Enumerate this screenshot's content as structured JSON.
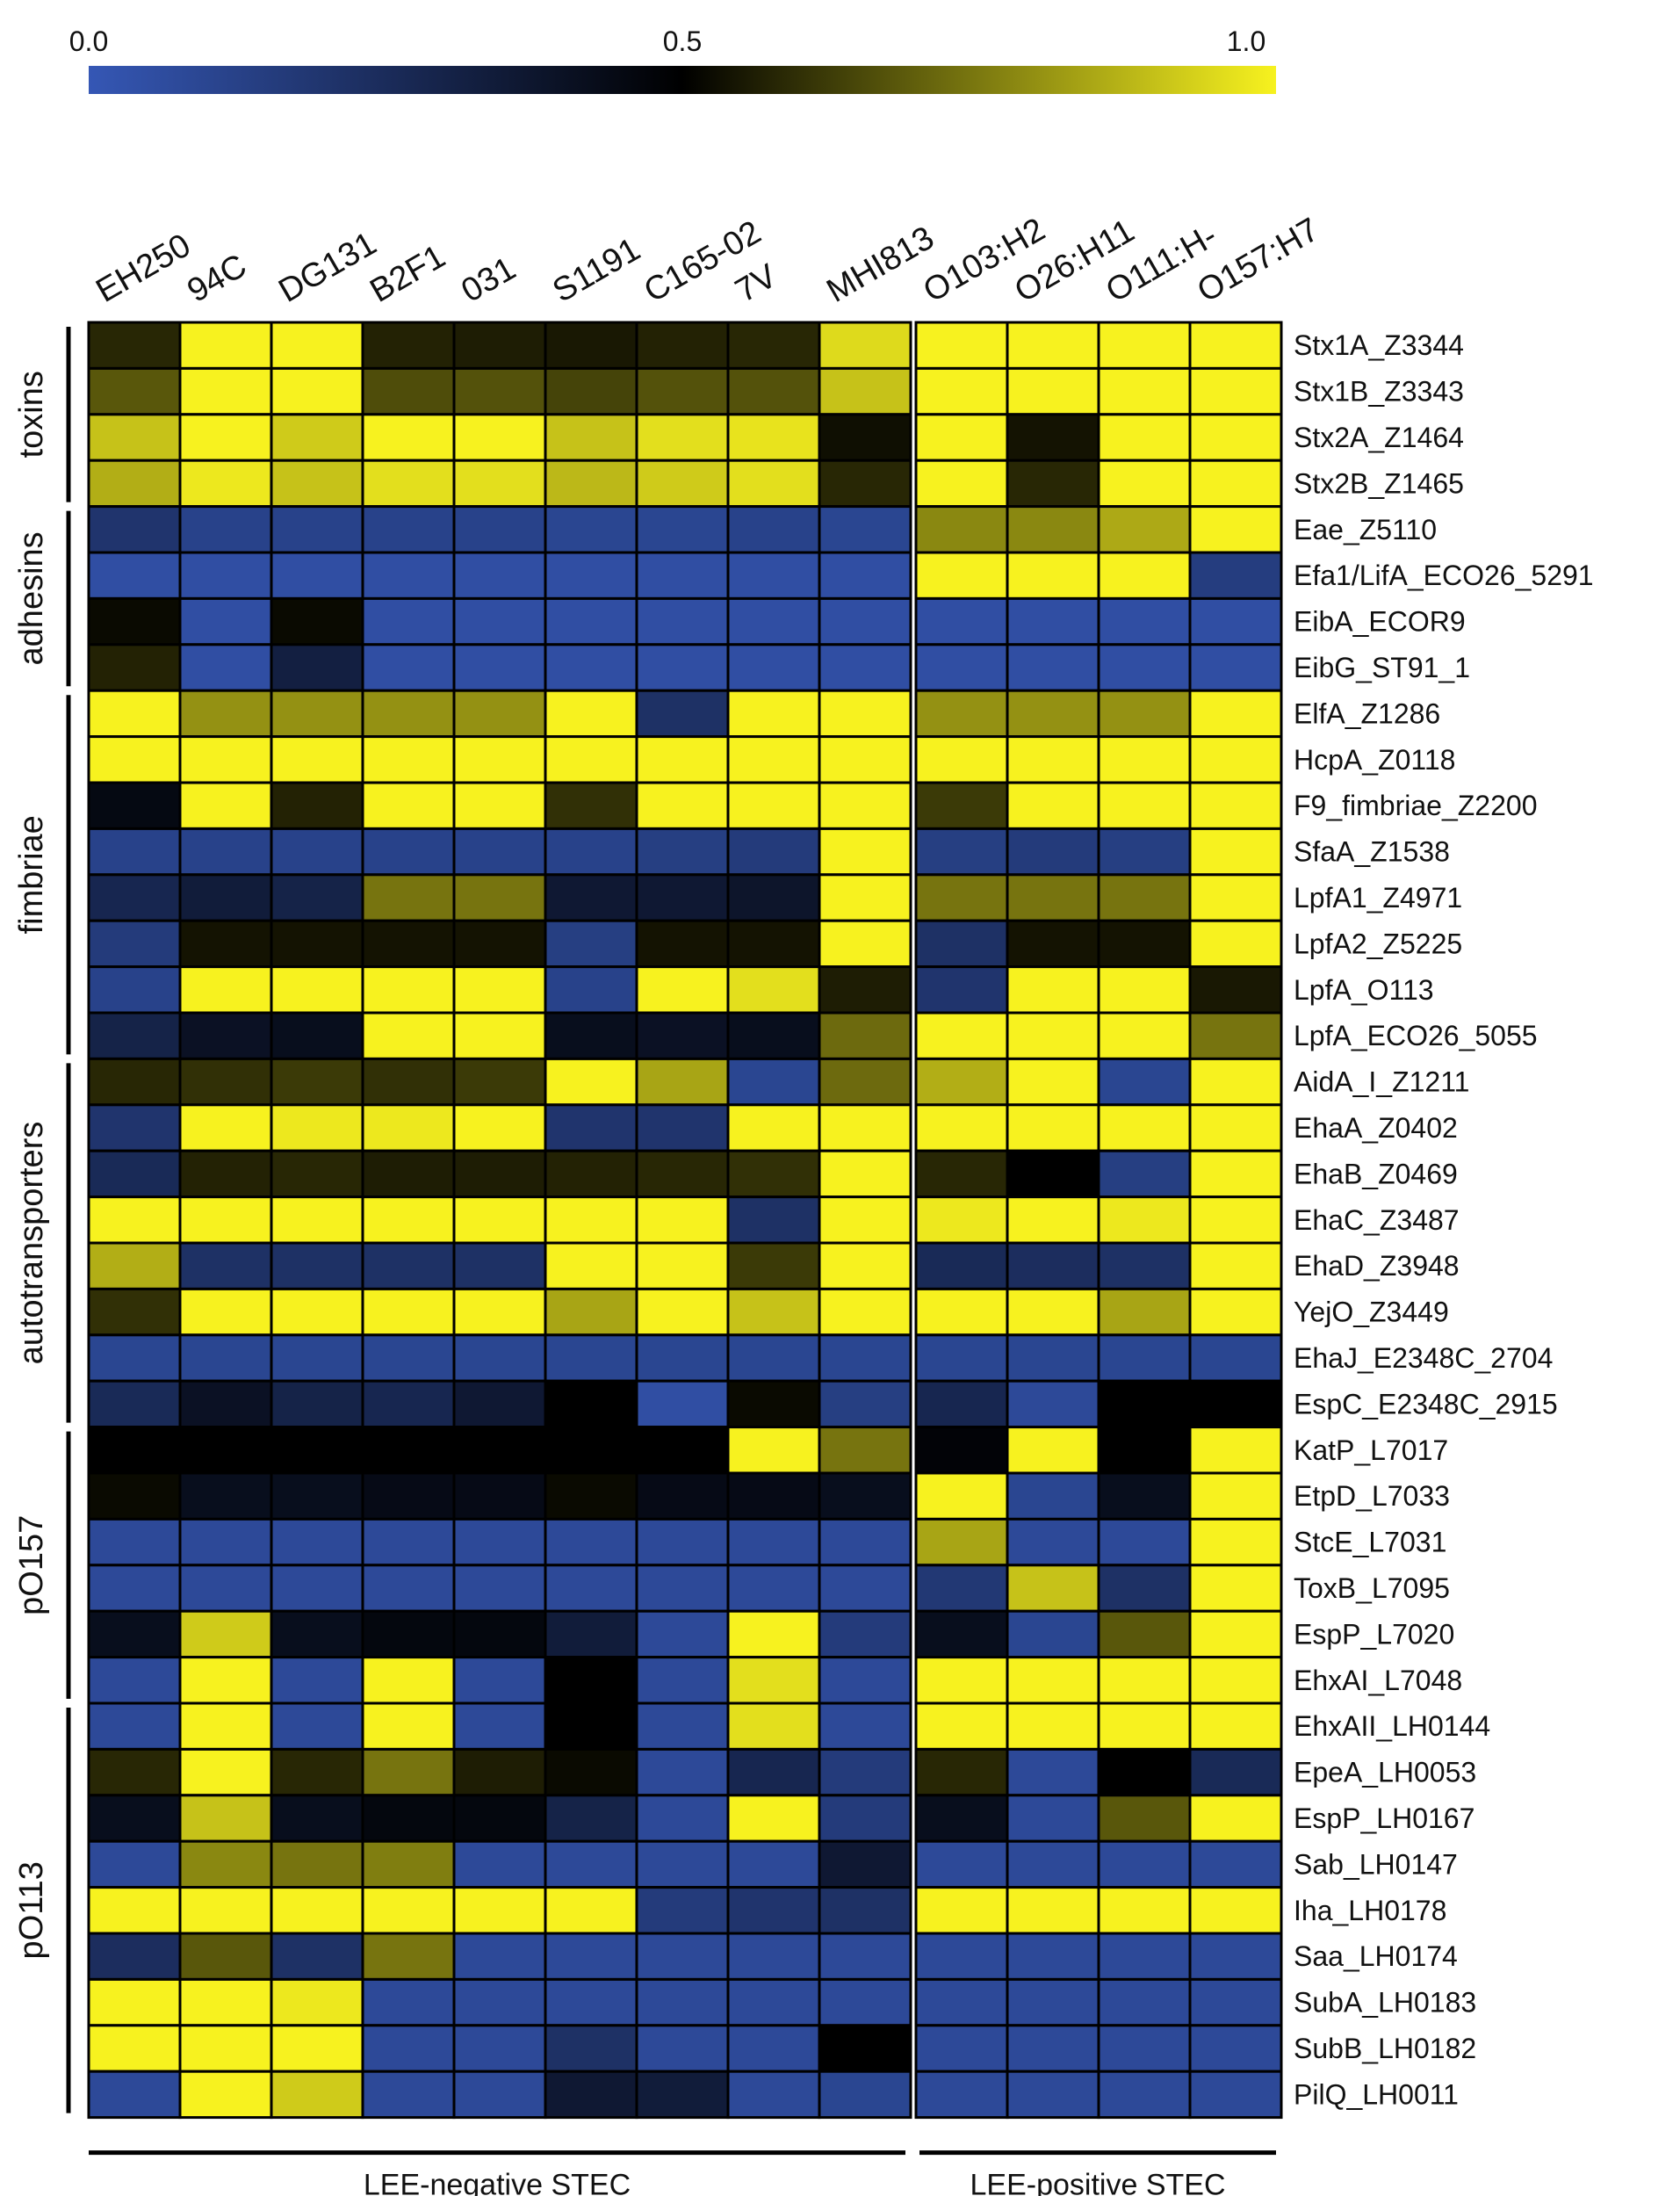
{
  "chart_data": {
    "type": "heatmap",
    "colorscale": {
      "ticks": [
        "0.0",
        "0.5",
        "1.0"
      ],
      "range": [
        0,
        1
      ],
      "stops": [
        {
          "value": 0.0,
          "color": "#3557b5"
        },
        {
          "value": 0.5,
          "color": "#000000"
        },
        {
          "value": 1.0,
          "color": "#f7f21f"
        }
      ]
    },
    "columns": [
      "EH250",
      "94C",
      "DG131",
      "B2F1",
      "031",
      "S1191",
      "C165-02",
      "7V",
      "MHI813",
      "O103:H2",
      "O26:H11",
      "O111:H-",
      "O157:H7"
    ],
    "rows": [
      "Stx1A_Z3344",
      "Stx1B_Z3343",
      "Stx2A_Z1464",
      "Stx2B_Z1465",
      "Eae_Z5110",
      "Efa1/LifA_ECO26_5291",
      "EibA_ECOR9",
      "EibG_ST91_1",
      "ElfA_Z1286",
      "HcpA_Z0118",
      "F9_fimbriae_Z2200",
      "SfaA_Z1538",
      "LpfA1_Z4971",
      "LpfA2_Z5225",
      "LpfA_O113",
      "LpfA_ECO26_5055",
      "AidA_I_Z1211",
      "EhaA_Z0402",
      "EhaB_Z0469",
      "EhaC_Z3487",
      "EhaD_Z3948",
      "YejO_Z3449",
      "EhaJ_E2348C_2704",
      "EspC_E2348C_2915",
      "KatP_L7017",
      "EtpD_L7033",
      "StcE_L7031",
      "ToxB_L7095",
      "EspP_L7020",
      "EhxAI_L7048",
      "EhxAII_LH0144",
      "EpeA_LH0053",
      "EspP_LH0167",
      "Sab_LH0147",
      "Iha_LH0178",
      "Saa_LH0174",
      "SubA_LH0183",
      "SubB_LH0182",
      "PilQ_LH0011"
    ],
    "values": [
      [
        0.58,
        1.0,
        1.0,
        0.57,
        0.56,
        0.55,
        0.57,
        0.58,
        0.95,
        1.0,
        1.0,
        1.0,
        1.0
      ],
      [
        0.68,
        1.0,
        1.0,
        0.66,
        0.67,
        0.64,
        0.67,
        0.67,
        0.9,
        1.0,
        1.0,
        1.0,
        1.0
      ],
      [
        0.9,
        1.0,
        0.92,
        1.0,
        1.0,
        0.9,
        0.96,
        0.97,
        0.53,
        1.0,
        0.54,
        1.0,
        1.0
      ],
      [
        0.86,
        0.98,
        0.9,
        0.96,
        0.96,
        0.88,
        0.92,
        0.96,
        0.58,
        1.0,
        0.58,
        1.0,
        1.0
      ],
      [
        0.2,
        0.12,
        0.12,
        0.12,
        0.12,
        0.1,
        0.1,
        0.12,
        0.1,
        0.78,
        0.78,
        0.85,
        1.0
      ],
      [
        0.05,
        0.05,
        0.05,
        0.05,
        0.05,
        0.05,
        0.05,
        0.05,
        0.05,
        1.0,
        1.0,
        1.0,
        0.15
      ],
      [
        0.52,
        0.05,
        0.52,
        0.05,
        0.05,
        0.05,
        0.05,
        0.05,
        0.05,
        0.05,
        0.05,
        0.05,
        0.05
      ],
      [
        0.57,
        0.05,
        0.32,
        0.05,
        0.05,
        0.05,
        0.05,
        0.05,
        0.05,
        0.05,
        0.05,
        0.05,
        0.05
      ],
      [
        1.0,
        0.8,
        0.8,
        0.8,
        0.8,
        1.0,
        0.22,
        1.0,
        1.0,
        0.8,
        0.8,
        0.8,
        1.0
      ],
      [
        1.0,
        1.0,
        1.0,
        1.0,
        1.0,
        1.0,
        1.0,
        1.0,
        1.0,
        1.0,
        1.0,
        1.0,
        1.0
      ],
      [
        0.45,
        1.0,
        0.57,
        1.0,
        1.0,
        0.6,
        1.0,
        1.0,
        1.0,
        0.62,
        1.0,
        1.0,
        1.0
      ],
      [
        0.12,
        0.12,
        0.12,
        0.12,
        0.12,
        0.12,
        0.14,
        0.16,
        1.0,
        0.14,
        0.16,
        0.14,
        1.0
      ],
      [
        0.28,
        0.34,
        0.3,
        0.74,
        0.74,
        0.36,
        0.36,
        0.38,
        1.0,
        0.74,
        0.74,
        0.74,
        1.0
      ],
      [
        0.16,
        0.54,
        0.54,
        0.54,
        0.54,
        0.14,
        0.54,
        0.54,
        1.0,
        0.22,
        0.54,
        0.54,
        1.0
      ],
      [
        0.12,
        1.0,
        1.0,
        1.0,
        1.0,
        0.12,
        1.0,
        0.96,
        0.56,
        0.2,
        1.0,
        1.0,
        0.55
      ],
      [
        0.3,
        0.4,
        0.42,
        1.0,
        1.0,
        0.42,
        0.4,
        0.42,
        0.72,
        1.0,
        1.0,
        1.0,
        0.74
      ],
      [
        0.58,
        0.6,
        0.62,
        0.6,
        0.62,
        1.0,
        0.84,
        0.1,
        0.72,
        0.86,
        1.0,
        0.1,
        1.0
      ],
      [
        0.2,
        1.0,
        0.98,
        0.98,
        1.0,
        0.2,
        0.2,
        1.0,
        1.0,
        1.0,
        1.0,
        1.0,
        1.0
      ],
      [
        0.26,
        0.57,
        0.58,
        0.56,
        0.56,
        0.57,
        0.58,
        0.6,
        1.0,
        0.58,
        0.5,
        0.14,
        1.0
      ],
      [
        1.0,
        1.0,
        1.0,
        1.0,
        1.0,
        1.0,
        1.0,
        0.22,
        1.0,
        0.98,
        1.0,
        0.98,
        1.0
      ],
      [
        0.86,
        0.22,
        0.22,
        0.22,
        0.22,
        1.0,
        1.0,
        0.62,
        1.0,
        0.26,
        0.24,
        0.22,
        1.0
      ],
      [
        0.6,
        1.0,
        1.0,
        1.0,
        1.0,
        0.84,
        1.0,
        0.9,
        1.0,
        1.0,
        1.0,
        0.84,
        1.0
      ],
      [
        0.1,
        0.1,
        0.1,
        0.1,
        0.1,
        0.1,
        0.1,
        0.1,
        0.1,
        0.1,
        0.1,
        0.1,
        0.1
      ],
      [
        0.26,
        0.4,
        0.3,
        0.28,
        0.36,
        0.5,
        0.05,
        0.52,
        0.14,
        0.28,
        0.08,
        0.5,
        0.5
      ],
      [
        0.5,
        0.5,
        0.5,
        0.5,
        0.5,
        0.5,
        0.5,
        1.0,
        0.74,
        0.48,
        1.0,
        0.5,
        1.0
      ],
      [
        0.52,
        0.42,
        0.42,
        0.44,
        0.44,
        0.52,
        0.44,
        0.44,
        0.42,
        1.0,
        0.1,
        0.42,
        1.0
      ],
      [
        0.08,
        0.08,
        0.08,
        0.08,
        0.08,
        0.08,
        0.08,
        0.08,
        0.08,
        0.84,
        0.08,
        0.08,
        1.0
      ],
      [
        0.08,
        0.08,
        0.08,
        0.08,
        0.08,
        0.08,
        0.08,
        0.08,
        0.08,
        0.18,
        0.9,
        0.22,
        1.0
      ],
      [
        0.42,
        0.92,
        0.42,
        0.46,
        0.46,
        0.34,
        0.08,
        1.0,
        0.16,
        0.42,
        0.1,
        0.68,
        1.0
      ],
      [
        0.08,
        1.0,
        0.08,
        1.0,
        0.08,
        0.5,
        0.08,
        0.96,
        0.08,
        1.0,
        1.0,
        1.0,
        1.0
      ],
      [
        0.08,
        1.0,
        0.08,
        1.0,
        0.08,
        0.5,
        0.08,
        0.96,
        0.08,
        1.0,
        1.0,
        1.0,
        1.0
      ],
      [
        0.58,
        1.0,
        0.58,
        0.74,
        0.56,
        0.52,
        0.08,
        0.28,
        0.16,
        0.58,
        0.08,
        0.5,
        0.26
      ],
      [
        0.42,
        0.9,
        0.42,
        0.46,
        0.46,
        0.3,
        0.08,
        1.0,
        0.16,
        0.42,
        0.08,
        0.68,
        1.0
      ],
      [
        0.08,
        0.78,
        0.74,
        0.76,
        0.08,
        0.08,
        0.08,
        0.08,
        0.36,
        0.08,
        0.08,
        0.08,
        0.08
      ],
      [
        1.0,
        1.0,
        1.0,
        1.0,
        1.0,
        1.0,
        0.16,
        0.2,
        0.22,
        1.0,
        1.0,
        1.0,
        1.0
      ],
      [
        0.24,
        0.68,
        0.22,
        0.74,
        0.08,
        0.08,
        0.08,
        0.08,
        0.08,
        0.08,
        0.08,
        0.08,
        0.08
      ],
      [
        1.0,
        1.0,
        0.98,
        0.08,
        0.08,
        0.08,
        0.08,
        0.08,
        0.08,
        0.08,
        0.08,
        0.08,
        0.08
      ],
      [
        1.0,
        1.0,
        1.0,
        0.08,
        0.08,
        0.22,
        0.08,
        0.08,
        0.5,
        0.08,
        0.08,
        0.08,
        0.08
      ],
      [
        0.08,
        1.0,
        0.92,
        0.08,
        0.08,
        0.36,
        0.34,
        0.08,
        0.1,
        0.08,
        0.08,
        0.08,
        0.08
      ]
    ],
    "row_groups": [
      {
        "label": "toxins",
        "start": 0,
        "end": 3
      },
      {
        "label": "adhesins",
        "start": 4,
        "end": 7
      },
      {
        "label": "fimbriae",
        "start": 8,
        "end": 15
      },
      {
        "label": "autotransporters",
        "start": 16,
        "end": 23
      },
      {
        "label": "pO157",
        "start": 24,
        "end": 29
      },
      {
        "label": "pO113",
        "start": 30,
        "end": 38
      }
    ],
    "column_groups": [
      {
        "label": "LEE-negative STEC",
        "start": 0,
        "end": 8
      },
      {
        "label": "LEE-positive STEC",
        "start": 9,
        "end": 12
      }
    ]
  }
}
